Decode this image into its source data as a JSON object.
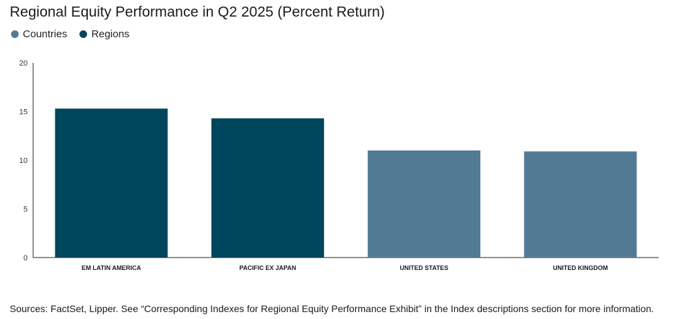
{
  "chart_data": {
    "type": "bar",
    "title": "Regional Equity Performance in Q2 2025 (Percent Return)",
    "categories": [
      "EM LATIN AMERICA",
      "PACIFIC EX JAPAN",
      "UNITED STATES",
      "UNITED KINGDOM"
    ],
    "values": [
      15.3,
      14.3,
      11.0,
      10.9
    ],
    "groups": [
      "Regions",
      "Regions",
      "Countries",
      "Countries"
    ],
    "legend": [
      {
        "name": "Countries",
        "color": "#527a95"
      },
      {
        "name": "Regions",
        "color": "#00465c"
      }
    ],
    "ylim": [
      0,
      20
    ],
    "yticks": [
      "0",
      "5",
      "10",
      "15",
      "20"
    ],
    "grid": false,
    "legend_position": "top-left"
  },
  "source_note": "Sources: FactSet, Lipper. See “Corresponding Indexes for Regional Equity Performance Exhibit” in the Index descriptions section for more information."
}
